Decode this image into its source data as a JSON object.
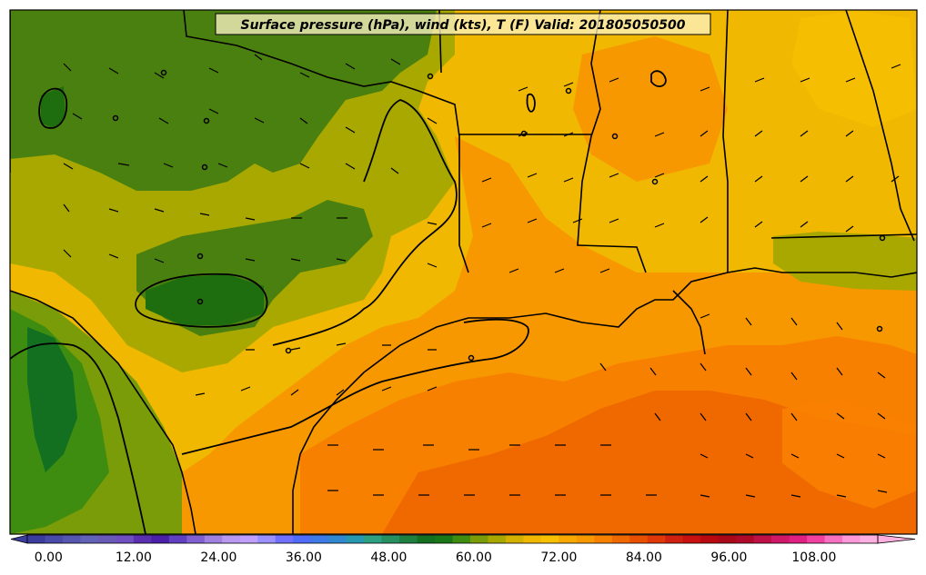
{
  "title": "Surface pressure (hPa), wind (kts), T (F) Valid: 201805050500",
  "colorbar": {
    "tick_labels": [
      "0.00",
      "12.00",
      "24.00",
      "36.00",
      "48.00",
      "60.00",
      "72.00",
      "84.00",
      "96.00",
      "108.00"
    ],
    "min": -3,
    "max": 117,
    "step": 3,
    "colors": [
      "#3b3c9c",
      "#4a4aa8",
      "#5656b0",
      "#6262b8",
      "#6a5ab8",
      "#7050c0",
      "#5a30b0",
      "#4a20a8",
      "#6040c0",
      "#8060d0",
      "#a080e0",
      "#b898f0",
      "#c0a0ff",
      "#9a90ff",
      "#7070ff",
      "#4f6cf8",
      "#3d7ae8",
      "#3088d0",
      "#2898b0",
      "#2ca080",
      "#269060",
      "#1e8040",
      "#127020",
      "#187818",
      "#3e8c10",
      "#7a9c08",
      "#a8a800",
      "#d4b000",
      "#f0b800",
      "#f8c000",
      "#f8a800",
      "#f89800",
      "#f88000",
      "#f06800",
      "#e85000",
      "#e03808",
      "#d02010",
      "#c81010",
      "#b80810",
      "#a80818",
      "#b00828",
      "#c01048",
      "#d01868",
      "#e02080",
      "#f040a0",
      "#f870c0",
      "#ff98d8",
      "#ffb0e0"
    ]
  }
}
